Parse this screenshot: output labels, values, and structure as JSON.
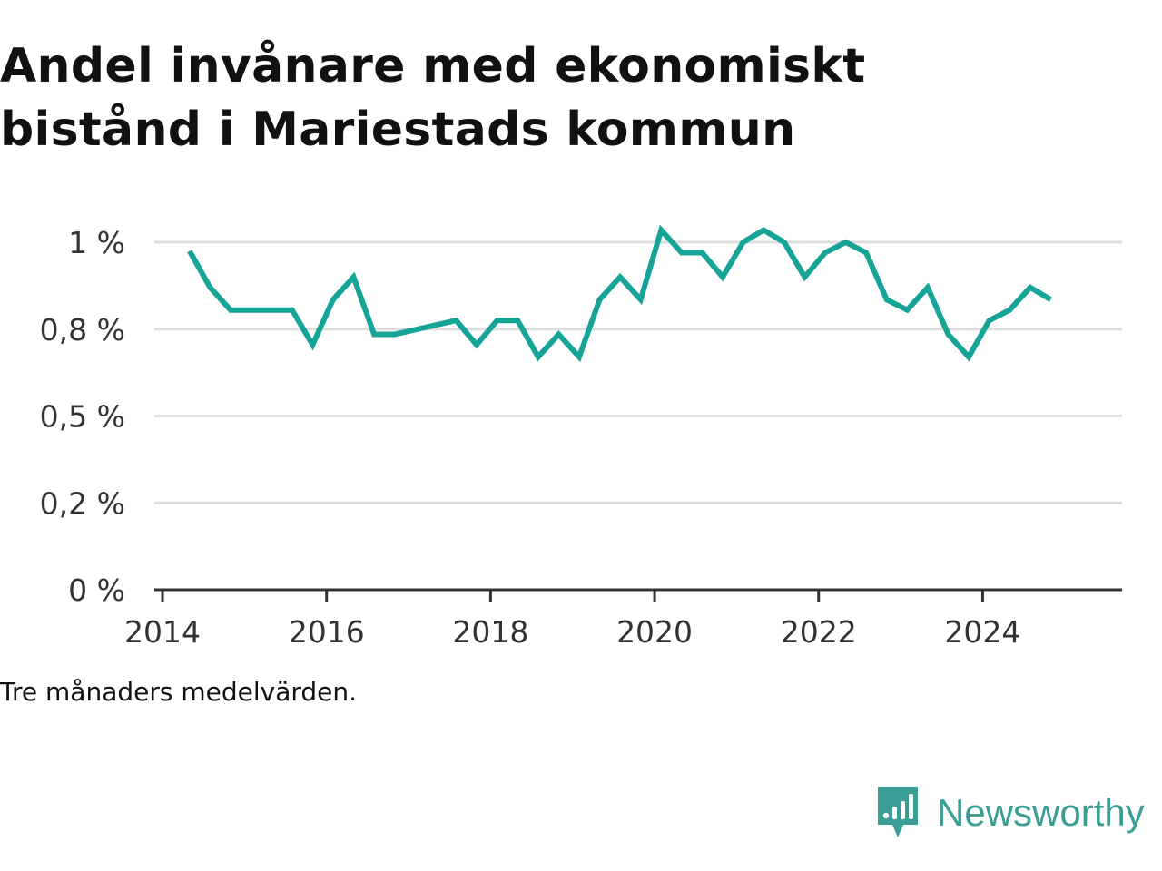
{
  "title_line1": "Andel invånare med ekonomiskt",
  "title_line2": "bistånd i Mariestads kommun",
  "footnote": "Tre månaders medelvärden.",
  "brand": "Newsworthy",
  "colors": {
    "line": "#16a497",
    "grid": "#dddddd",
    "axis": "#333333",
    "brand": "#3a9e95"
  },
  "chart_data": {
    "type": "line",
    "title": "Andel invånare med ekonomiskt bistånd i Mariestads kommun",
    "xlabel": "",
    "ylabel": "",
    "xlim": [
      2013.9,
      2025.7
    ],
    "ylim": [
      0,
      1.0
    ],
    "grid": true,
    "x_ticks": [
      {
        "value": 2014,
        "label": "2014"
      },
      {
        "value": 2016,
        "label": "2016"
      },
      {
        "value": 2018,
        "label": "2018"
      },
      {
        "value": 2020,
        "label": "2020"
      },
      {
        "value": 2022,
        "label": "2022"
      },
      {
        "value": 2024,
        "label": "2024"
      }
    ],
    "y_ticks": [
      {
        "value": 0,
        "label": "0 %"
      },
      {
        "value": 0.25,
        "label": "0,2 %"
      },
      {
        "value": 0.5,
        "label": "0,5 %"
      },
      {
        "value": 0.75,
        "label": "0,8 %"
      },
      {
        "value": 1.0,
        "label": "1 %"
      }
    ],
    "series": [
      {
        "x": [
          2014.33,
          2014.58,
          2014.83,
          2015.08,
          2015.33,
          2015.58,
          2015.83,
          2016.08,
          2016.33,
          2016.58,
          2016.83,
          2017.58,
          2017.83,
          2018.08,
          2018.33,
          2018.58,
          2018.83,
          2019.08,
          2019.33,
          2019.58,
          2019.83,
          2020.08,
          2020.33,
          2020.58,
          2020.83,
          2021.08,
          2021.33,
          2021.58,
          2021.83,
          2022.08,
          2022.33,
          2022.58,
          2022.83,
          2023.08,
          2023.33,
          2023.58,
          2023.83,
          2024.08,
          2024.33,
          2024.58,
          2024.83
        ],
        "y": [
          0.975,
          0.87,
          0.805,
          0.805,
          0.805,
          0.805,
          0.705,
          0.835,
          0.9,
          0.735,
          0.735,
          0.775,
          0.705,
          0.775,
          0.775,
          0.67,
          0.735,
          0.67,
          0.835,
          0.9,
          0.835,
          1.035,
          0.97,
          0.97,
          0.9,
          1.0,
          1.035,
          1.0,
          0.9,
          0.97,
          1.0,
          0.97,
          0.835,
          0.805,
          0.87,
          0.735,
          0.67,
          0.775,
          0.805,
          0.87,
          0.835
        ]
      }
    ]
  }
}
